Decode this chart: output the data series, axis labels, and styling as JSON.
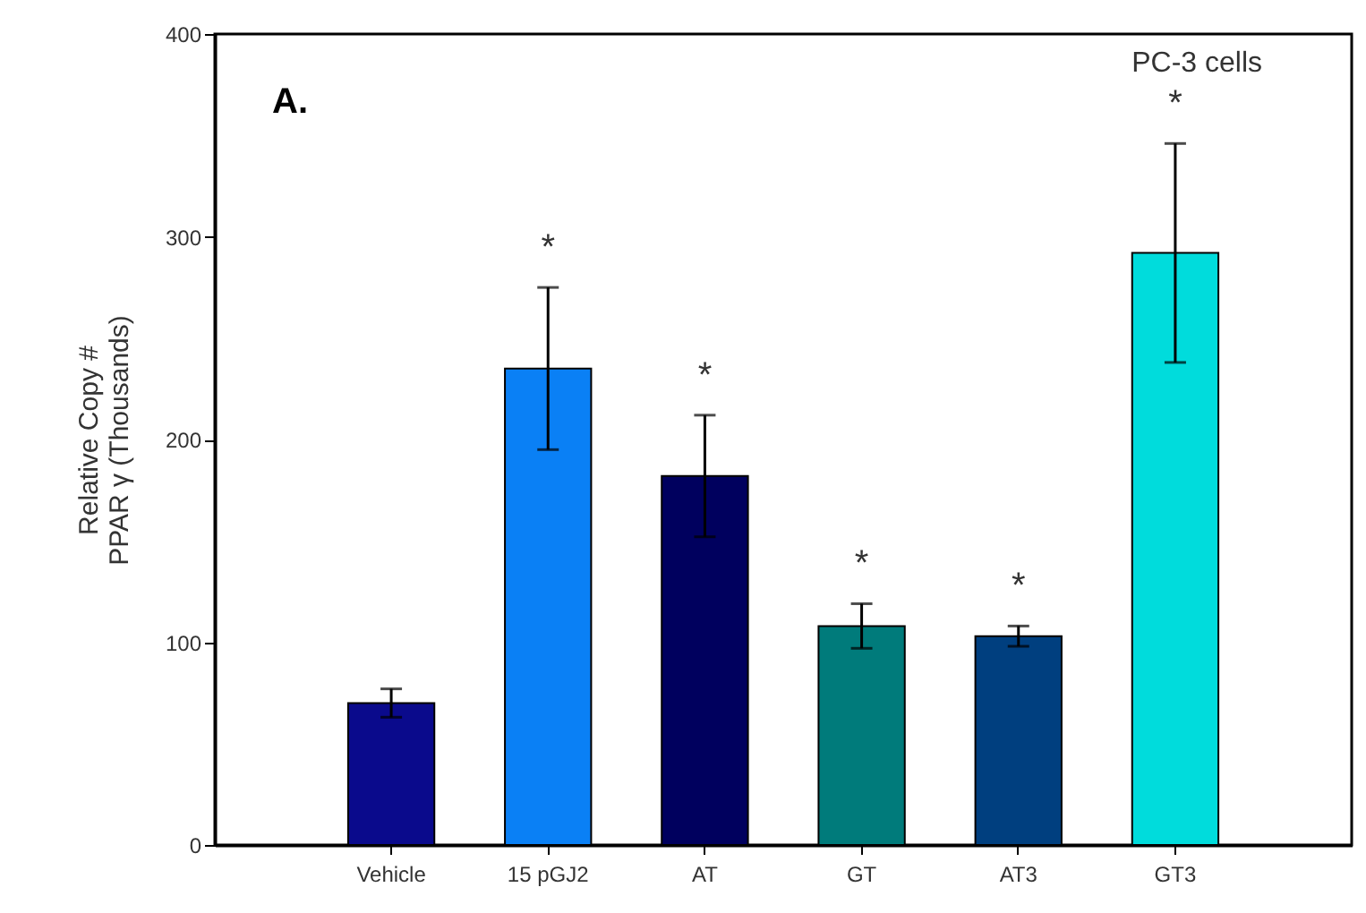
{
  "chart_data": {
    "type": "bar",
    "ylabel": "Relative Copy #\nPPAR γ (Thousands)",
    "categories": [
      "Vehicle",
      "15 pGJ2",
      "AT",
      "GT",
      "AT3",
      "GT3"
    ],
    "values": [
      70,
      235,
      182,
      108,
      103,
      292
    ],
    "errors": [
      7,
      40,
      30,
      11,
      5,
      54
    ],
    "colors": [
      "#0a0a8c",
      "#0a80f5",
      "#00005e",
      "#007b7b",
      "#003f7f",
      "#00dcdc"
    ],
    "ylim": [
      0,
      400
    ],
    "yticks": [
      0,
      100,
      200,
      300,
      400
    ],
    "grid": false,
    "annotations": [
      "A.",
      "PC-3 cells",
      "*",
      "*",
      "*",
      "*",
      "*"
    ]
  }
}
